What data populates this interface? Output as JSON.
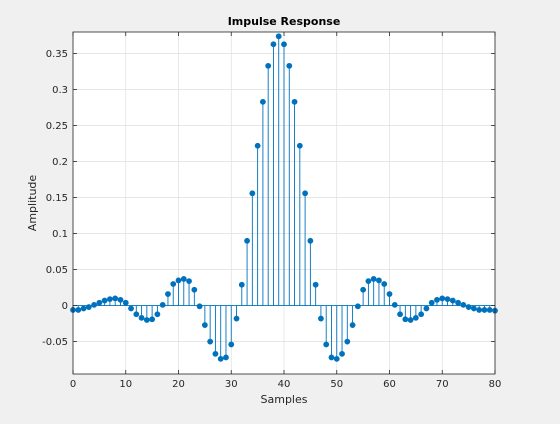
{
  "chart_data": {
    "type": "stem",
    "title": "Impulse Response",
    "xlabel": "Samples",
    "ylabel": "Amplitude",
    "xlim": [
      0,
      80
    ],
    "ylim": [
      -0.095,
      0.38
    ],
    "xticks": [
      0,
      10,
      20,
      30,
      40,
      50,
      60,
      70,
      80
    ],
    "xtick_labels": [
      "0",
      "10",
      "20",
      "30",
      "40",
      "50",
      "60",
      "70",
      "80"
    ],
    "yticks": [
      -0.05,
      0,
      0.05,
      0.1,
      0.15,
      0.2,
      0.25,
      0.3,
      0.35
    ],
    "ytick_labels": [
      "-0.05",
      "0",
      "0.05",
      "0.1",
      "0.15",
      "0.2",
      "0.25",
      "0.3",
      "0.35"
    ],
    "grid": true,
    "series_color": "#0072bd",
    "x": [
      0,
      1,
      2,
      3,
      4,
      5,
      6,
      7,
      8,
      9,
      10,
      11,
      12,
      13,
      14,
      15,
      16,
      17,
      18,
      19,
      20,
      21,
      22,
      23,
      24,
      25,
      26,
      27,
      28,
      29,
      30,
      31,
      32,
      33,
      34,
      35,
      36,
      37,
      38,
      39,
      40,
      41,
      42,
      43,
      44,
      45,
      46,
      47,
      48,
      49,
      50,
      51,
      52,
      53,
      54,
      55,
      56,
      57,
      58,
      59,
      60,
      61,
      62,
      63,
      64,
      65,
      66,
      67,
      68,
      69,
      70,
      71,
      72,
      73,
      74,
      75,
      76,
      77,
      78,
      79,
      80
    ],
    "y": [
      -0.006,
      -0.006,
      -0.004,
      -0.002,
      0.001,
      0.004,
      0.007,
      0.009,
      0.01,
      0.008,
      0.004,
      -0.004,
      -0.012,
      -0.017,
      -0.02,
      -0.019,
      -0.012,
      0.001,
      0.016,
      0.03,
      0.035,
      0.037,
      0.034,
      0.022,
      -0.001,
      -0.027,
      -0.05,
      -0.067,
      -0.074,
      -0.072,
      -0.054,
      -0.018,
      0.029,
      0.09,
      0.156,
      0.222,
      0.283,
      0.333,
      0.363,
      0.374,
      0.363,
      0.333,
      0.283,
      0.222,
      0.156,
      0.09,
      0.029,
      -0.018,
      -0.054,
      -0.072,
      -0.074,
      -0.067,
      -0.05,
      -0.027,
      -0.001,
      0.022,
      0.034,
      0.037,
      0.035,
      0.03,
      0.016,
      0.001,
      -0.012,
      -0.019,
      -0.02,
      -0.017,
      -0.012,
      -0.004,
      0.004,
      0.008,
      0.01,
      0.009,
      0.007,
      0.004,
      0.001,
      -0.002,
      -0.004,
      -0.006,
      -0.006,
      -0.006,
      -0.007
    ]
  }
}
